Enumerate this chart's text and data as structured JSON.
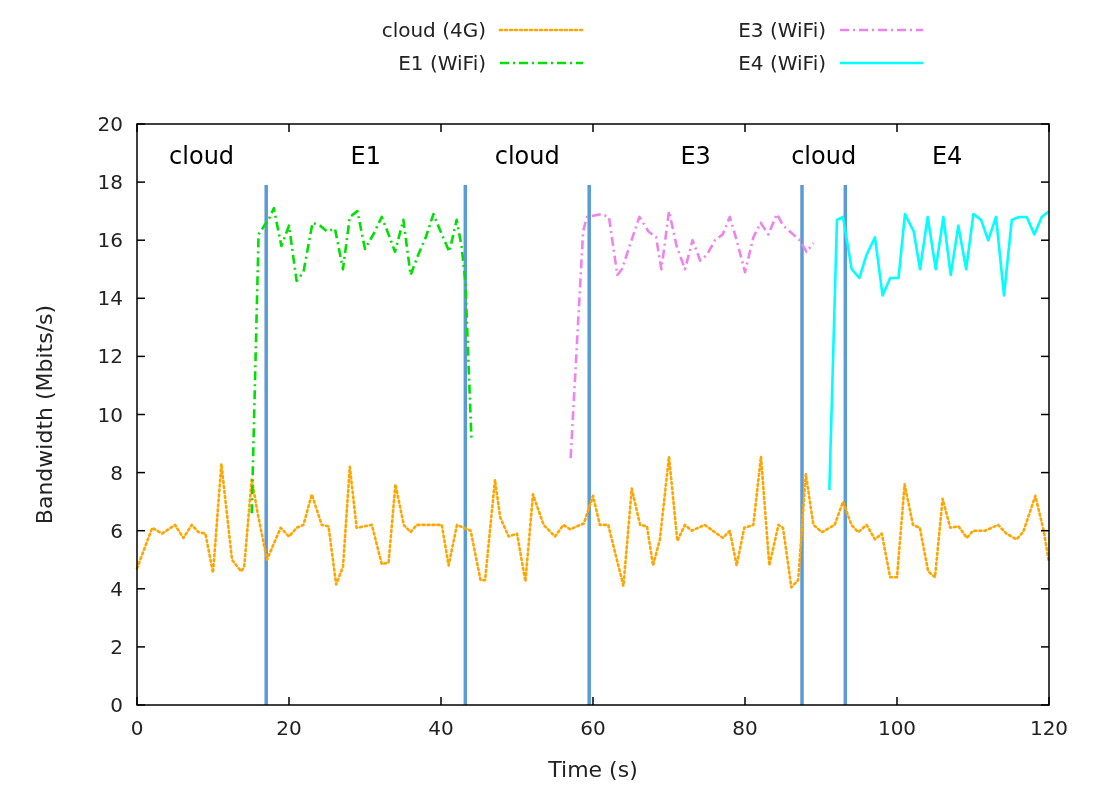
{
  "chart_data": {
    "type": "line",
    "xlabel": "Time (s)",
    "ylabel": "Bandwidth (Mbits/s)",
    "xlim": [
      0,
      120
    ],
    "xticks": [
      0,
      20,
      40,
      60,
      80,
      100,
      120
    ],
    "ylim": [
      0,
      20
    ],
    "yticks": [
      0,
      2,
      4,
      6,
      8,
      10,
      12,
      14,
      16,
      18,
      20
    ],
    "grid": false,
    "legend": "top",
    "marker": "none",
    "series": [
      {
        "name": "cloud (4G)",
        "color": "#ffa500",
        "line_style": "dotted",
        "x": [
          0,
          2,
          3.3,
          5,
          6.1,
          7.2,
          8.1,
          9,
          10,
          11.1,
          12.5,
          13.7,
          14.1,
          15.1,
          15.8,
          17.1,
          18.9,
          20,
          21,
          21.9,
          23,
          24.3,
          25.2,
          26.2,
          27.1,
          28,
          28.9,
          30.9,
          32.2,
          33.1,
          34,
          35.1,
          36,
          36.8,
          40.1,
          41,
          42.1,
          43.9,
          45.2,
          45.8,
          47.1,
          47.8,
          48.9,
          50,
          51.1,
          52.1,
          53.5,
          55,
          56.1,
          57,
          58.8,
          60,
          60.9,
          62,
          64,
          65.1,
          66.2,
          67.1,
          67.9,
          68.8,
          70,
          71.1,
          72.1,
          73,
          74.7,
          77.1,
          78,
          78.9,
          79.9,
          81.1,
          82.1,
          83.2,
          84.4,
          85,
          86.1,
          87,
          88,
          89,
          90.1,
          91.8,
          92.9,
          94,
          94.9,
          96,
          97.1,
          98,
          99.1,
          100,
          101,
          102.1,
          103,
          104.1,
          105,
          106,
          107,
          108.1,
          109.2,
          110,
          111.6,
          113.3,
          114.4,
          115.7,
          116.6,
          118.2,
          119.3,
          120
        ],
        "values": [
          4.7,
          6.1,
          5.9,
          6.2,
          5.75,
          6.2,
          5.95,
          5.9,
          4.55,
          8.3,
          5,
          4.6,
          4.75,
          7.8,
          6.7,
          5,
          6.1,
          5.8,
          6.1,
          6.2,
          7.25,
          6.2,
          6.15,
          4.15,
          4.75,
          8.2,
          6.1,
          6.2,
          4.85,
          4.9,
          7.6,
          6.2,
          5.95,
          6.2,
          6.2,
          4.8,
          6.2,
          6,
          4.3,
          4.3,
          7.75,
          6.45,
          5.8,
          5.9,
          4.25,
          7.25,
          6.2,
          5.8,
          6.2,
          6.05,
          6.25,
          7.2,
          6.2,
          6.2,
          4.1,
          7.45,
          6.2,
          6.15,
          4.8,
          5.7,
          8.55,
          5.65,
          6.2,
          6,
          6.2,
          5.75,
          6,
          4.8,
          6.1,
          6.2,
          8.55,
          4.8,
          6.2,
          6.1,
          4.05,
          4.3,
          7.95,
          6.2,
          5.95,
          6.2,
          7,
          6.2,
          5.95,
          6.2,
          5.7,
          5.9,
          4.4,
          4.4,
          7.6,
          6.2,
          6.1,
          4.6,
          4.4,
          7.1,
          6.1,
          6.15,
          5.75,
          6,
          6,
          6.2,
          5.9,
          5.7,
          5.95,
          7.2,
          6,
          4.9
        ]
      },
      {
        "name": "E1 (WiFi)",
        "color": "#00e000",
        "line_style": "dashed",
        "x": [
          15.1,
          16,
          17.5,
          18,
          19,
          20,
          21,
          21.9,
          23.1,
          24.1,
          25,
          26.05,
          27.1,
          28,
          29,
          30,
          31.1,
          32.2,
          33.1,
          33.95,
          35.05,
          36,
          37,
          38,
          39,
          40.1,
          41.1,
          42.06,
          42.7,
          43.2,
          44
        ],
        "values": [
          6.6,
          16.2,
          16.8,
          17.1,
          15.8,
          16.5,
          14.6,
          14.9,
          16.6,
          16.5,
          16.3,
          16.4,
          15,
          16.8,
          17,
          15.7,
          16.2,
          16.8,
          16.2,
          15.6,
          16.7,
          14.8,
          15.5,
          16.1,
          16.9,
          16.2,
          15.6,
          16.7,
          15.8,
          14.6,
          9.2
        ]
      },
      {
        "name": "E3 (WiFi)",
        "color": "#ee82ee",
        "line_style": "dashed",
        "x": [
          57.06,
          58.7,
          59.2,
          61.1,
          62.1,
          63.2,
          63.8,
          66.1,
          67.3,
          68.3,
          69,
          70,
          71,
          72.1,
          73.1,
          74.1,
          75,
          76.05,
          77.06,
          78,
          78.9,
          80,
          81.1,
          82.06,
          83.07,
          84.2,
          85.04,
          85.9,
          87.2,
          88.1,
          89
        ],
        "values": [
          8.5,
          16.3,
          16.8,
          16.9,
          16.8,
          14.8,
          15,
          16.8,
          16.3,
          16.1,
          15,
          17,
          15.8,
          15,
          16,
          15.3,
          15.5,
          16,
          16.2,
          16.8,
          16,
          14.9,
          16.1,
          16.6,
          16.2,
          16.9,
          16.5,
          16.3,
          16,
          15.6,
          15.9
        ]
      },
      {
        "name": "E4 (WiFi)",
        "color": "#00ffff",
        "line_style": "solid",
        "x": [
          91.1,
          92.1,
          92.9,
          94.04,
          95.05,
          96,
          97.1,
          98.1,
          99.1,
          100.2,
          101.05,
          102.2,
          103.03,
          104.04,
          105.1,
          106.1,
          107.07,
          108.07,
          109.1,
          110.05,
          111.06,
          112,
          113.03,
          114.08,
          115.1,
          116.1,
          117.07,
          118.07,
          119.04,
          120
        ],
        "values": [
          7.4,
          16.7,
          16.8,
          15,
          14.7,
          15.5,
          16.1,
          14.1,
          14.7,
          14.7,
          16.9,
          16.3,
          15,
          16.8,
          15,
          16.8,
          14.8,
          16.5,
          15,
          16.9,
          16.7,
          16,
          16.8,
          14.1,
          16.7,
          16.8,
          16.8,
          16.2,
          16.8,
          17
        ]
      }
    ],
    "ref_lines": [
      {
        "axis": "x",
        "value": 17,
        "color": "#5b9bd5"
      },
      {
        "axis": "x",
        "value": 43.2,
        "color": "#5b9bd5"
      },
      {
        "axis": "x",
        "value": 59.5,
        "color": "#5b9bd5"
      },
      {
        "axis": "x",
        "value": 87.5,
        "color": "#5b9bd5"
      },
      {
        "axis": "x",
        "value": 93.2,
        "color": "#5b9bd5"
      }
    ],
    "annotations": [
      "cloud",
      "E1",
      "cloud",
      "E3",
      "cloud",
      "E4"
    ]
  }
}
